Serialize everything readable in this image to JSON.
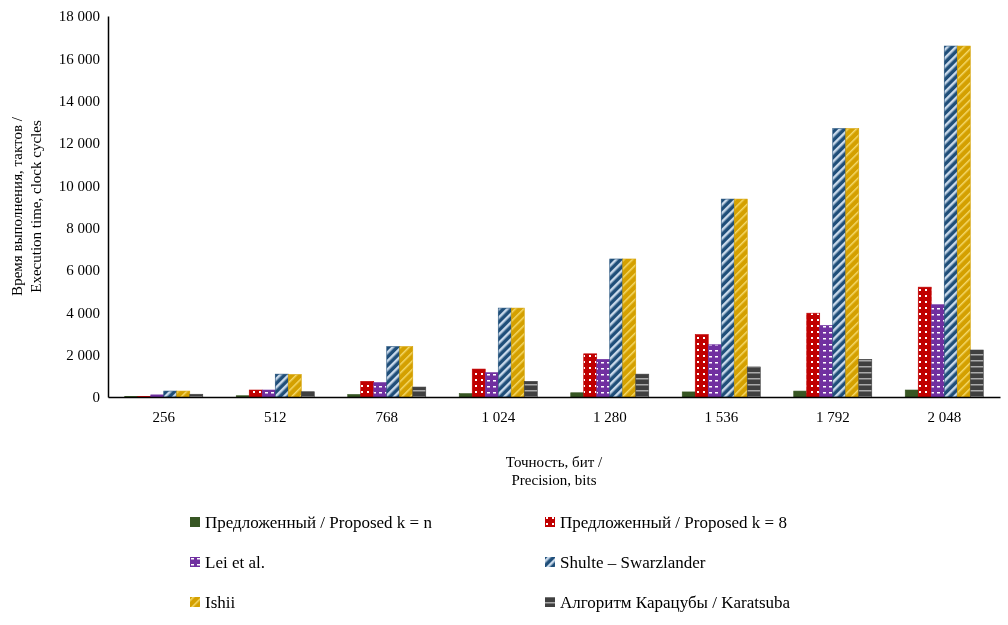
{
  "chart_data": {
    "type": "bar",
    "xlabel": "Точность, бит / Precision, bits",
    "ylabel": "Время выполнения, тактов / Execution time, clock cycles",
    "categories": [
      "256",
      "512",
      "768",
      "1 024",
      "1 280",
      "1 536",
      "1 792",
      "2 048"
    ],
    "ylim": [
      0,
      18000
    ],
    "yticks": [
      {
        "value": 0,
        "label": "0"
      },
      {
        "value": 2000,
        "label": "2 000"
      },
      {
        "value": 4000,
        "label": "4 000"
      },
      {
        "value": 6000,
        "label": "6 000"
      },
      {
        "value": 8000,
        "label": "8 000"
      },
      {
        "value": 10000,
        "label": "10 000"
      },
      {
        "value": 12000,
        "label": "12 000"
      },
      {
        "value": 14000,
        "label": "14 000"
      },
      {
        "value": 16000,
        "label": "16 000"
      },
      {
        "value": 18000,
        "label": "18 000"
      }
    ],
    "grid": false,
    "legend": "bottom",
    "series": [
      {
        "name": "Предложенный / Proposed k = n",
        "color": "#375623",
        "values": [
          20,
          60,
          120,
          160,
          200,
          240,
          280,
          330
        ]
      },
      {
        "name": "Предложенный / Proposed k = 8",
        "color": "#c00000",
        "values": [
          30,
          330,
          740,
          1320,
          2040,
          2950,
          3960,
          5190
        ]
      },
      {
        "name": "Lei et al.",
        "color": "#7030a0",
        "values": [
          100,
          330,
          680,
          1150,
          1780,
          2470,
          3380,
          4360
        ]
      },
      {
        "name": "Shulte – Swarzlander",
        "color": "#1f4e79",
        "values": [
          280,
          1080,
          2380,
          4200,
          6520,
          9350,
          12680,
          16580
        ]
      },
      {
        "name": "Ishii",
        "color": "#d4a000",
        "values": [
          280,
          1060,
          2380,
          4200,
          6520,
          9350,
          12680,
          16580
        ]
      },
      {
        "name": "Алгоритм Карацубы / Karatsuba",
        "color": "#404040",
        "values": [
          130,
          250,
          470,
          740,
          1080,
          1420,
          1780,
          2220
        ]
      }
    ]
  }
}
